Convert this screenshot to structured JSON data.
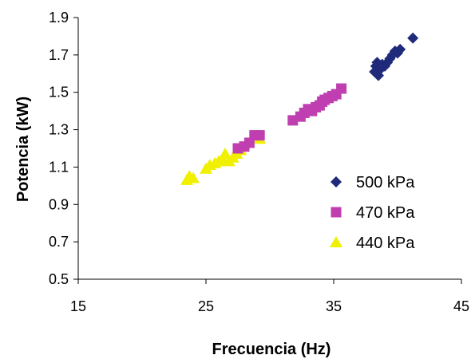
{
  "chart_data": {
    "type": "scatter",
    "title": "",
    "xlabel": "Frecuencia (Hz)",
    "ylabel": "Potencia (kW)",
    "xlim": [
      15,
      45
    ],
    "ylim": [
      0.5,
      1.9
    ],
    "x_ticks": [
      "15",
      "25",
      "35",
      "45"
    ],
    "y_ticks": [
      "0.5",
      "0.7",
      "0.9",
      "1.1",
      "1.3",
      "1.5",
      "1.7",
      "1.9"
    ],
    "grid": false,
    "legend_position": "right",
    "series": [
      {
        "name": "500 kPa",
        "marker": "diamond",
        "color": "#1f2a7a",
        "points": [
          [
            38.2,
            1.61
          ],
          [
            38.3,
            1.64
          ],
          [
            38.4,
            1.66
          ],
          [
            38.5,
            1.59
          ],
          [
            38.6,
            1.62
          ],
          [
            38.8,
            1.65
          ],
          [
            39.0,
            1.64
          ],
          [
            39.2,
            1.66
          ],
          [
            39.4,
            1.68
          ],
          [
            39.6,
            1.7
          ],
          [
            39.8,
            1.72
          ],
          [
            40.0,
            1.71
          ],
          [
            40.2,
            1.73
          ],
          [
            41.2,
            1.79
          ]
        ]
      },
      {
        "name": "470 kPa",
        "marker": "square",
        "color": "#c03fb0",
        "points": [
          [
            27.5,
            1.2
          ],
          [
            28.0,
            1.21
          ],
          [
            28.4,
            1.23
          ],
          [
            28.8,
            1.27
          ],
          [
            29.2,
            1.27
          ],
          [
            31.8,
            1.35
          ],
          [
            32.4,
            1.37
          ],
          [
            32.7,
            1.39
          ],
          [
            33.0,
            1.41
          ],
          [
            33.3,
            1.4
          ],
          [
            33.6,
            1.42
          ],
          [
            33.9,
            1.43
          ],
          [
            34.1,
            1.45
          ],
          [
            34.3,
            1.46
          ],
          [
            34.6,
            1.47
          ],
          [
            34.9,
            1.48
          ],
          [
            35.2,
            1.49
          ],
          [
            35.6,
            1.52
          ]
        ]
      },
      {
        "name": "440 kPa",
        "marker": "triangle",
        "color": "#f0f000",
        "points": [
          [
            23.5,
            1.03
          ],
          [
            23.7,
            1.05
          ],
          [
            24.0,
            1.04
          ],
          [
            25.0,
            1.09
          ],
          [
            25.3,
            1.11
          ],
          [
            25.7,
            1.12
          ],
          [
            26.0,
            1.13
          ],
          [
            26.3,
            1.14
          ],
          [
            26.5,
            1.17
          ],
          [
            26.8,
            1.13
          ],
          [
            27.1,
            1.15
          ],
          [
            27.4,
            1.17
          ],
          [
            27.7,
            1.19
          ],
          [
            29.2,
            1.25
          ]
        ]
      }
    ]
  }
}
